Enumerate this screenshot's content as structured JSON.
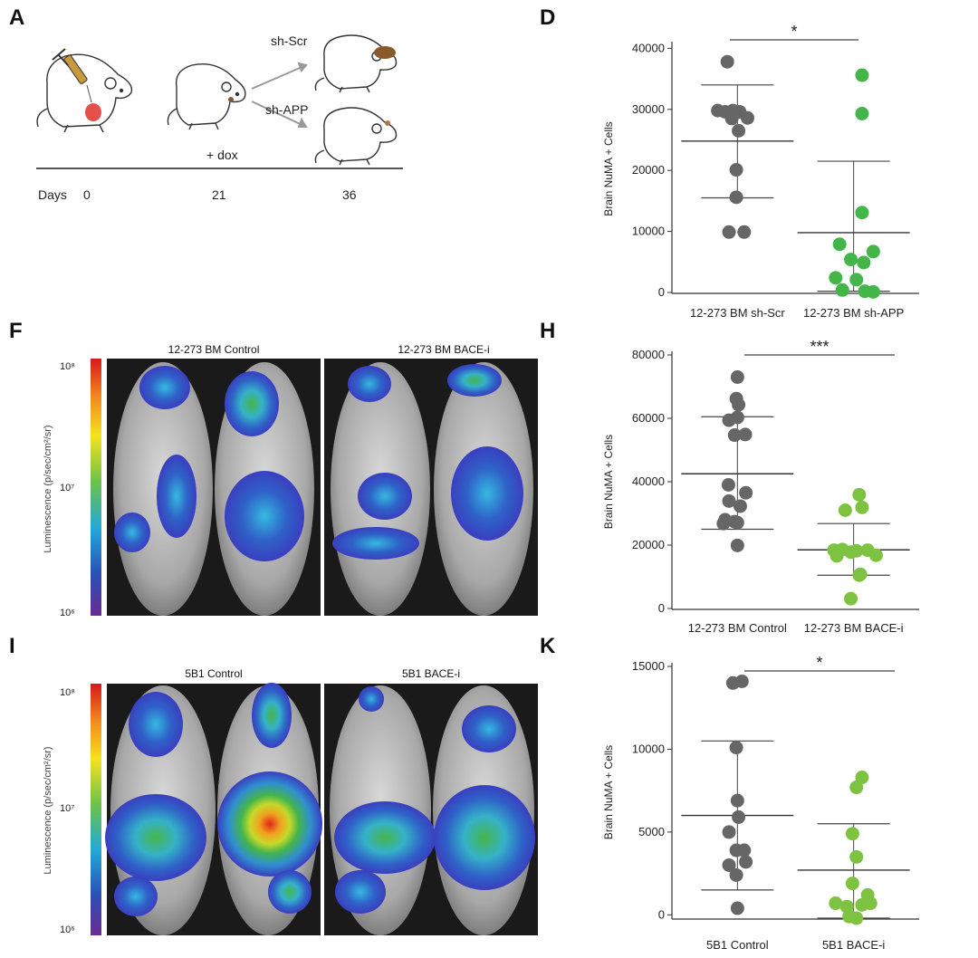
{
  "panel_letters": {
    "a": "A",
    "d": "D",
    "f": "F",
    "h": "H",
    "i": "I",
    "k": "K"
  },
  "panel_a": {
    "timeline_days_label": "Days",
    "timeline_ticks": [
      "0",
      "21",
      "36"
    ],
    "dox_label": "+ dox",
    "arm_top_label": "sh-Scr",
    "arm_bottom_label": "sh-APP"
  },
  "panel_f": {
    "image_labels": [
      "12-273 BM Control",
      "12-273 BM BACE-i"
    ],
    "colorbar_label": "Luminescence (p/sec/cm²/sr)",
    "colorbar_ticks": [
      "10⁸",
      "10⁷",
      "10⁶"
    ]
  },
  "panel_i": {
    "image_labels": [
      "5B1 Control",
      "5B1 BACE-i"
    ],
    "colorbar_label": "Luminescence (p/sec/cm²/sr)",
    "colorbar_ticks": [
      "10⁸",
      "10⁷",
      "10⁶"
    ]
  },
  "colors": {
    "gray": "#666666",
    "green_d": "#44b549",
    "green_hk": "#7ec242",
    "line": "#333333"
  },
  "chart_data": [
    {
      "id": "D",
      "type": "scatter",
      "ylabel": "Brain NuMA + Cells",
      "categories": [
        "12-273 BM sh-Scr",
        "12-273 BM sh-APP"
      ],
      "yticks": [
        0,
        10000,
        20000,
        30000,
        40000
      ],
      "ylim": [
        0,
        40500
      ],
      "significance": "*",
      "series": [
        {
          "name": "12-273 BM sh-Scr",
          "color": "#666666",
          "points": [
            [
              -0.18,
              37800
            ],
            [
              -0.35,
              29800
            ],
            [
              -0.22,
              29600
            ],
            [
              -0.08,
              29800
            ],
            [
              0.04,
              29600
            ],
            [
              0.18,
              28600
            ],
            [
              -0.1,
              28500
            ],
            [
              0.02,
              26500
            ],
            [
              -0.02,
              20100
            ],
            [
              -0.02,
              15600
            ],
            [
              -0.15,
              9900
            ],
            [
              0.12,
              9900
            ]
          ],
          "mean": 24800,
          "sd_upper": 34000,
          "sd_lower": 15500
        },
        {
          "name": "12-273 BM sh-APP",
          "color": "#44b549",
          "points": [
            [
              0.15,
              35600
            ],
            [
              0.15,
              29300
            ],
            [
              0.15,
              13100
            ],
            [
              -0.25,
              7900
            ],
            [
              0.35,
              6700
            ],
            [
              -0.05,
              5400
            ],
            [
              0.18,
              4900
            ],
            [
              -0.32,
              2400
            ],
            [
              0.05,
              2100
            ],
            [
              -0.2,
              400
            ],
            [
              0.2,
              200
            ],
            [
              0.35,
              100
            ]
          ],
          "mean": 9800,
          "sd_upper": 21500,
          "sd_lower": 200
        }
      ]
    },
    {
      "id": "H",
      "type": "scatter",
      "ylabel": "Brain NuMA + Cells",
      "categories": [
        "12-273 BM Control",
        "12-273 BM BACE-i"
      ],
      "yticks": [
        0,
        20000,
        40000,
        60000,
        80000
      ],
      "ylim": [
        0,
        80000
      ],
      "significance": "***",
      "series": [
        {
          "name": "12-273 BM Control",
          "color": "#666666",
          "points": [
            [
              0.0,
              73000
            ],
            [
              -0.02,
              66200
            ],
            [
              0.02,
              64300
            ],
            [
              0.0,
              60300
            ],
            [
              -0.15,
              59400
            ],
            [
              0.14,
              54900
            ],
            [
              -0.05,
              54700
            ],
            [
              -0.16,
              39000
            ],
            [
              0.15,
              36500
            ],
            [
              -0.15,
              33900
            ],
            [
              0.05,
              32300
            ],
            [
              -0.22,
              28000
            ],
            [
              -0.05,
              27400
            ],
            [
              0.0,
              27100
            ],
            [
              -0.25,
              26800
            ],
            [
              0.0,
              19900
            ]
          ],
          "mean": 42500,
          "sd_upper": 60500,
          "sd_lower": 25000
        },
        {
          "name": "12-273 BM BACE-i",
          "color": "#7ec242",
          "points": [
            [
              0.1,
              35900
            ],
            [
              0.15,
              31900
            ],
            [
              -0.15,
              31000
            ],
            [
              0.25,
              18400
            ],
            [
              -0.35,
              18400
            ],
            [
              -0.2,
              18600
            ],
            [
              0.05,
              18200
            ],
            [
              -0.05,
              17800
            ],
            [
              0.4,
              16800
            ],
            [
              -0.3,
              16600
            ],
            [
              0.1,
              10500
            ],
            [
              0.12,
              10800
            ],
            [
              -0.05,
              3100
            ]
          ],
          "mean": 18500,
          "sd_upper": 26800,
          "sd_lower": 10500
        }
      ]
    },
    {
      "id": "K",
      "type": "scatter",
      "ylabel": "Brain NuMA + Cells",
      "categories": [
        "5B1 Control",
        "5B1 BACE-i"
      ],
      "yticks": [
        0,
        5000,
        10000,
        15000
      ],
      "ylim": [
        -200,
        15000
      ],
      "significance": "*",
      "series": [
        {
          "name": "5B1 Control",
          "color": "#666666",
          "points": [
            [
              -0.08,
              14000
            ],
            [
              0.08,
              14100
            ],
            [
              -0.02,
              10100
            ],
            [
              0.0,
              6900
            ],
            [
              -0.15,
              5000
            ],
            [
              0.02,
              5900
            ],
            [
              0.12,
              3900
            ],
            [
              -0.02,
              3900
            ],
            [
              -0.15,
              3000
            ],
            [
              0.15,
              3200
            ],
            [
              -0.02,
              2400
            ],
            [
              0.0,
              400
            ]
          ],
          "mean": 6000,
          "sd_upper": 10500,
          "sd_lower": 1500
        },
        {
          "name": "5B1 BACE-i",
          "color": "#7ec242",
          "points": [
            [
              0.15,
              8300
            ],
            [
              0.05,
              7700
            ],
            [
              -0.02,
              4900
            ],
            [
              0.05,
              3500
            ],
            [
              -0.02,
              1900
            ],
            [
              0.25,
              1200
            ],
            [
              -0.32,
              700
            ],
            [
              0.15,
              600
            ],
            [
              -0.12,
              500
            ],
            [
              0.3,
              700
            ],
            [
              -0.08,
              -100
            ],
            [
              0.05,
              -200
            ]
          ],
          "mean": 2700,
          "sd_upper": 5500,
          "sd_lower": -200
        }
      ]
    }
  ]
}
